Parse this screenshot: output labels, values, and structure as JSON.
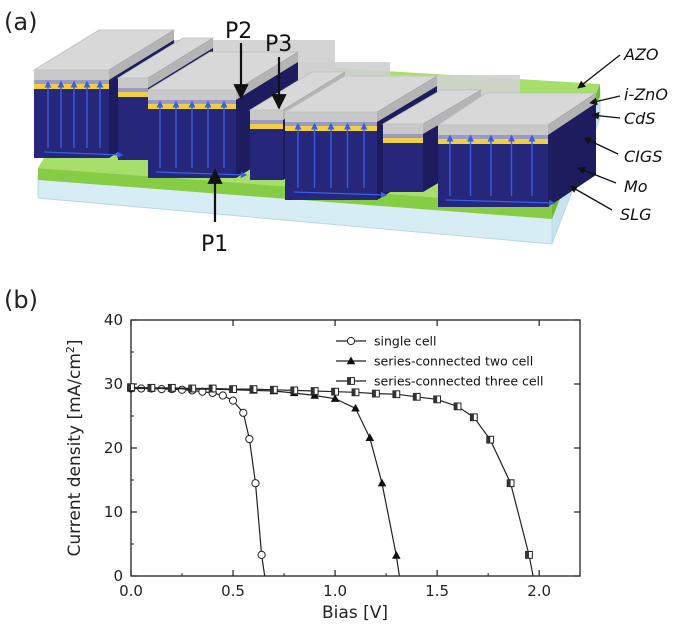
{
  "panel_a": {
    "letter": "(a)",
    "scribe_labels": [
      "P1",
      "P2",
      "P3"
    ],
    "layers": [
      "AZO",
      "i-ZnO",
      "CdS",
      "CIGS",
      "Mo",
      "SLG"
    ],
    "colors": {
      "azo": "#c8c8c8",
      "izno": "#9a9ac8",
      "cds": "#f0d040",
      "cigs": "#26267a",
      "mo": "#8ed24a",
      "slg": "#dff0f6",
      "current": "#3a5ee0"
    }
  },
  "panel_b": {
    "letter": "(b)"
  },
  "chart_data": {
    "type": "line",
    "title": "",
    "xlabel": "Bias [V]",
    "ylabel": "Current density [mA/cm²]",
    "xlim": [
      0,
      2.2
    ],
    "ylim": [
      0,
      40
    ],
    "x_ticks": [
      "0.0",
      "0.5",
      "1.0",
      "1.5",
      "2.0"
    ],
    "y_ticks": [
      "0",
      "10",
      "20",
      "30",
      "40"
    ],
    "grid": false,
    "legend_position": "top-right",
    "series": [
      {
        "name": "single cell",
        "marker": "open-circle",
        "x": [
          0.0,
          0.05,
          0.1,
          0.15,
          0.2,
          0.25,
          0.3,
          0.35,
          0.4,
          0.45,
          0.5,
          0.55,
          0.58,
          0.61,
          0.64,
          0.655
        ],
        "y": [
          29.3,
          29.3,
          29.3,
          29.2,
          29.2,
          29.1,
          29.0,
          28.8,
          28.6,
          28.2,
          27.4,
          25.5,
          21.4,
          14.5,
          3.3,
          0.0
        ]
      },
      {
        "name": "series-connected two cell",
        "marker": "filled-triangle",
        "x": [
          0.0,
          0.1,
          0.2,
          0.3,
          0.4,
          0.5,
          0.6,
          0.7,
          0.8,
          0.9,
          1.0,
          1.1,
          1.17,
          1.23,
          1.3,
          1.315
        ],
        "y": [
          29.3,
          29.3,
          29.3,
          29.2,
          29.2,
          29.1,
          29.0,
          28.9,
          28.6,
          28.2,
          27.7,
          26.2,
          21.6,
          14.5,
          3.2,
          0.0
        ]
      },
      {
        "name": "series-connected three cell",
        "marker": "half-filled-square",
        "x": [
          0.0,
          0.1,
          0.2,
          0.3,
          0.4,
          0.5,
          0.6,
          0.7,
          0.8,
          0.9,
          1.0,
          1.1,
          1.2,
          1.3,
          1.4,
          1.5,
          1.6,
          1.68,
          1.76,
          1.86,
          1.95,
          1.97
        ],
        "y": [
          29.5,
          29.4,
          29.4,
          29.3,
          29.3,
          29.2,
          29.2,
          29.1,
          29.0,
          28.9,
          28.8,
          28.7,
          28.5,
          28.4,
          28.0,
          27.6,
          26.5,
          24.8,
          21.3,
          14.5,
          3.3,
          0.0
        ]
      }
    ]
  }
}
